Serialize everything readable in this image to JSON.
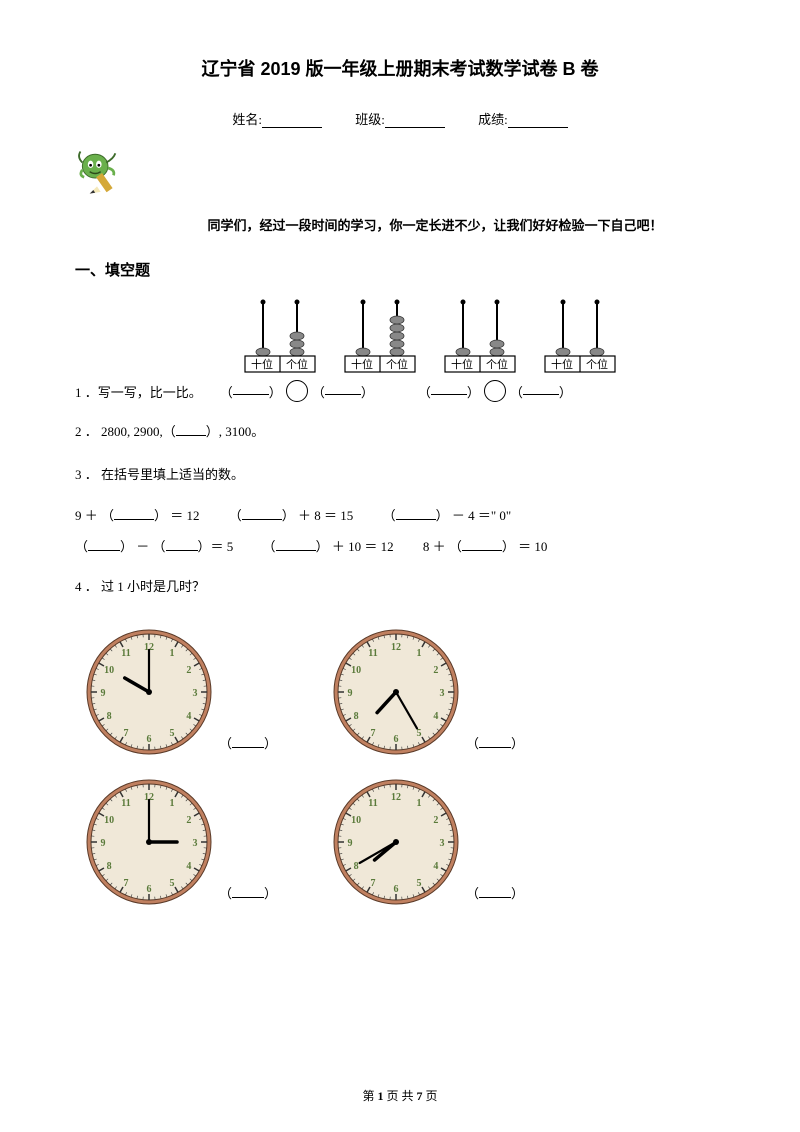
{
  "title": "辽宁省 2019 版一年级上册期末考试数学试卷 B 卷",
  "info": {
    "name_label": "姓名:",
    "class_label": "班级:",
    "score_label": "成绩:"
  },
  "intro": "同学们，经过一段时间的学习，你一定长进不少，让我们好好检验一下自己吧！",
  "section1": "一、填空题",
  "abacus_labels": {
    "tens": "十位",
    "ones": "个位"
  },
  "abacus": [
    {
      "tens_beads": 1,
      "ones_beads": 3
    },
    {
      "tens_beads": 1,
      "ones_beads": 5
    },
    {
      "tens_beads": 1,
      "ones_beads": 2
    },
    {
      "tens_beads": 1,
      "ones_beads": 1
    }
  ],
  "q1": {
    "num": "1 ．",
    "text": "写一写，比一比。"
  },
  "q2": {
    "num": "2 ．",
    "text_a": "2800, 2900,（",
    "text_b": "）, 3100。"
  },
  "q3": {
    "num": "3 ．",
    "text": "在括号里填上适当的数。"
  },
  "eq_row1": {
    "a1": "9 ＋ （",
    "a2": "） ＝ 12",
    "b1": "（",
    "b2": "） ＋ 8 ＝ 15",
    "c1": "（",
    "c2": "） － 4 ＝\" 0\""
  },
  "eq_row2": {
    "a1": "（",
    "a2": "） － （",
    "a3": "）＝ 5",
    "b1": "（",
    "b2": "） ＋ 10 ＝ 12",
    "c1": "8 ＋ （",
    "c2": "） ＝ 10"
  },
  "q4": {
    "num": "4 ．",
    "text": "过 1 小时是几时？"
  },
  "clocks": [
    {
      "hour": 10,
      "minute": 0,
      "face_bg": "#f0e8d8",
      "rim": "#c08060"
    },
    {
      "hour": 7,
      "minute": 25,
      "face_bg": "#f0e8d8",
      "rim": "#c08060"
    },
    {
      "hour": 3,
      "minute": 0,
      "face_bg": "#f0e8d8",
      "rim": "#c08060"
    },
    {
      "hour": 7,
      "minute": 40,
      "face_bg": "#f0e8d8",
      "rim": "#c08060"
    }
  ],
  "clock_numeral_color": "#5a7a3a",
  "footer": {
    "a": "第 ",
    "page": "1",
    "b": " 页 共 ",
    "total": "7",
    "c": " 页"
  }
}
